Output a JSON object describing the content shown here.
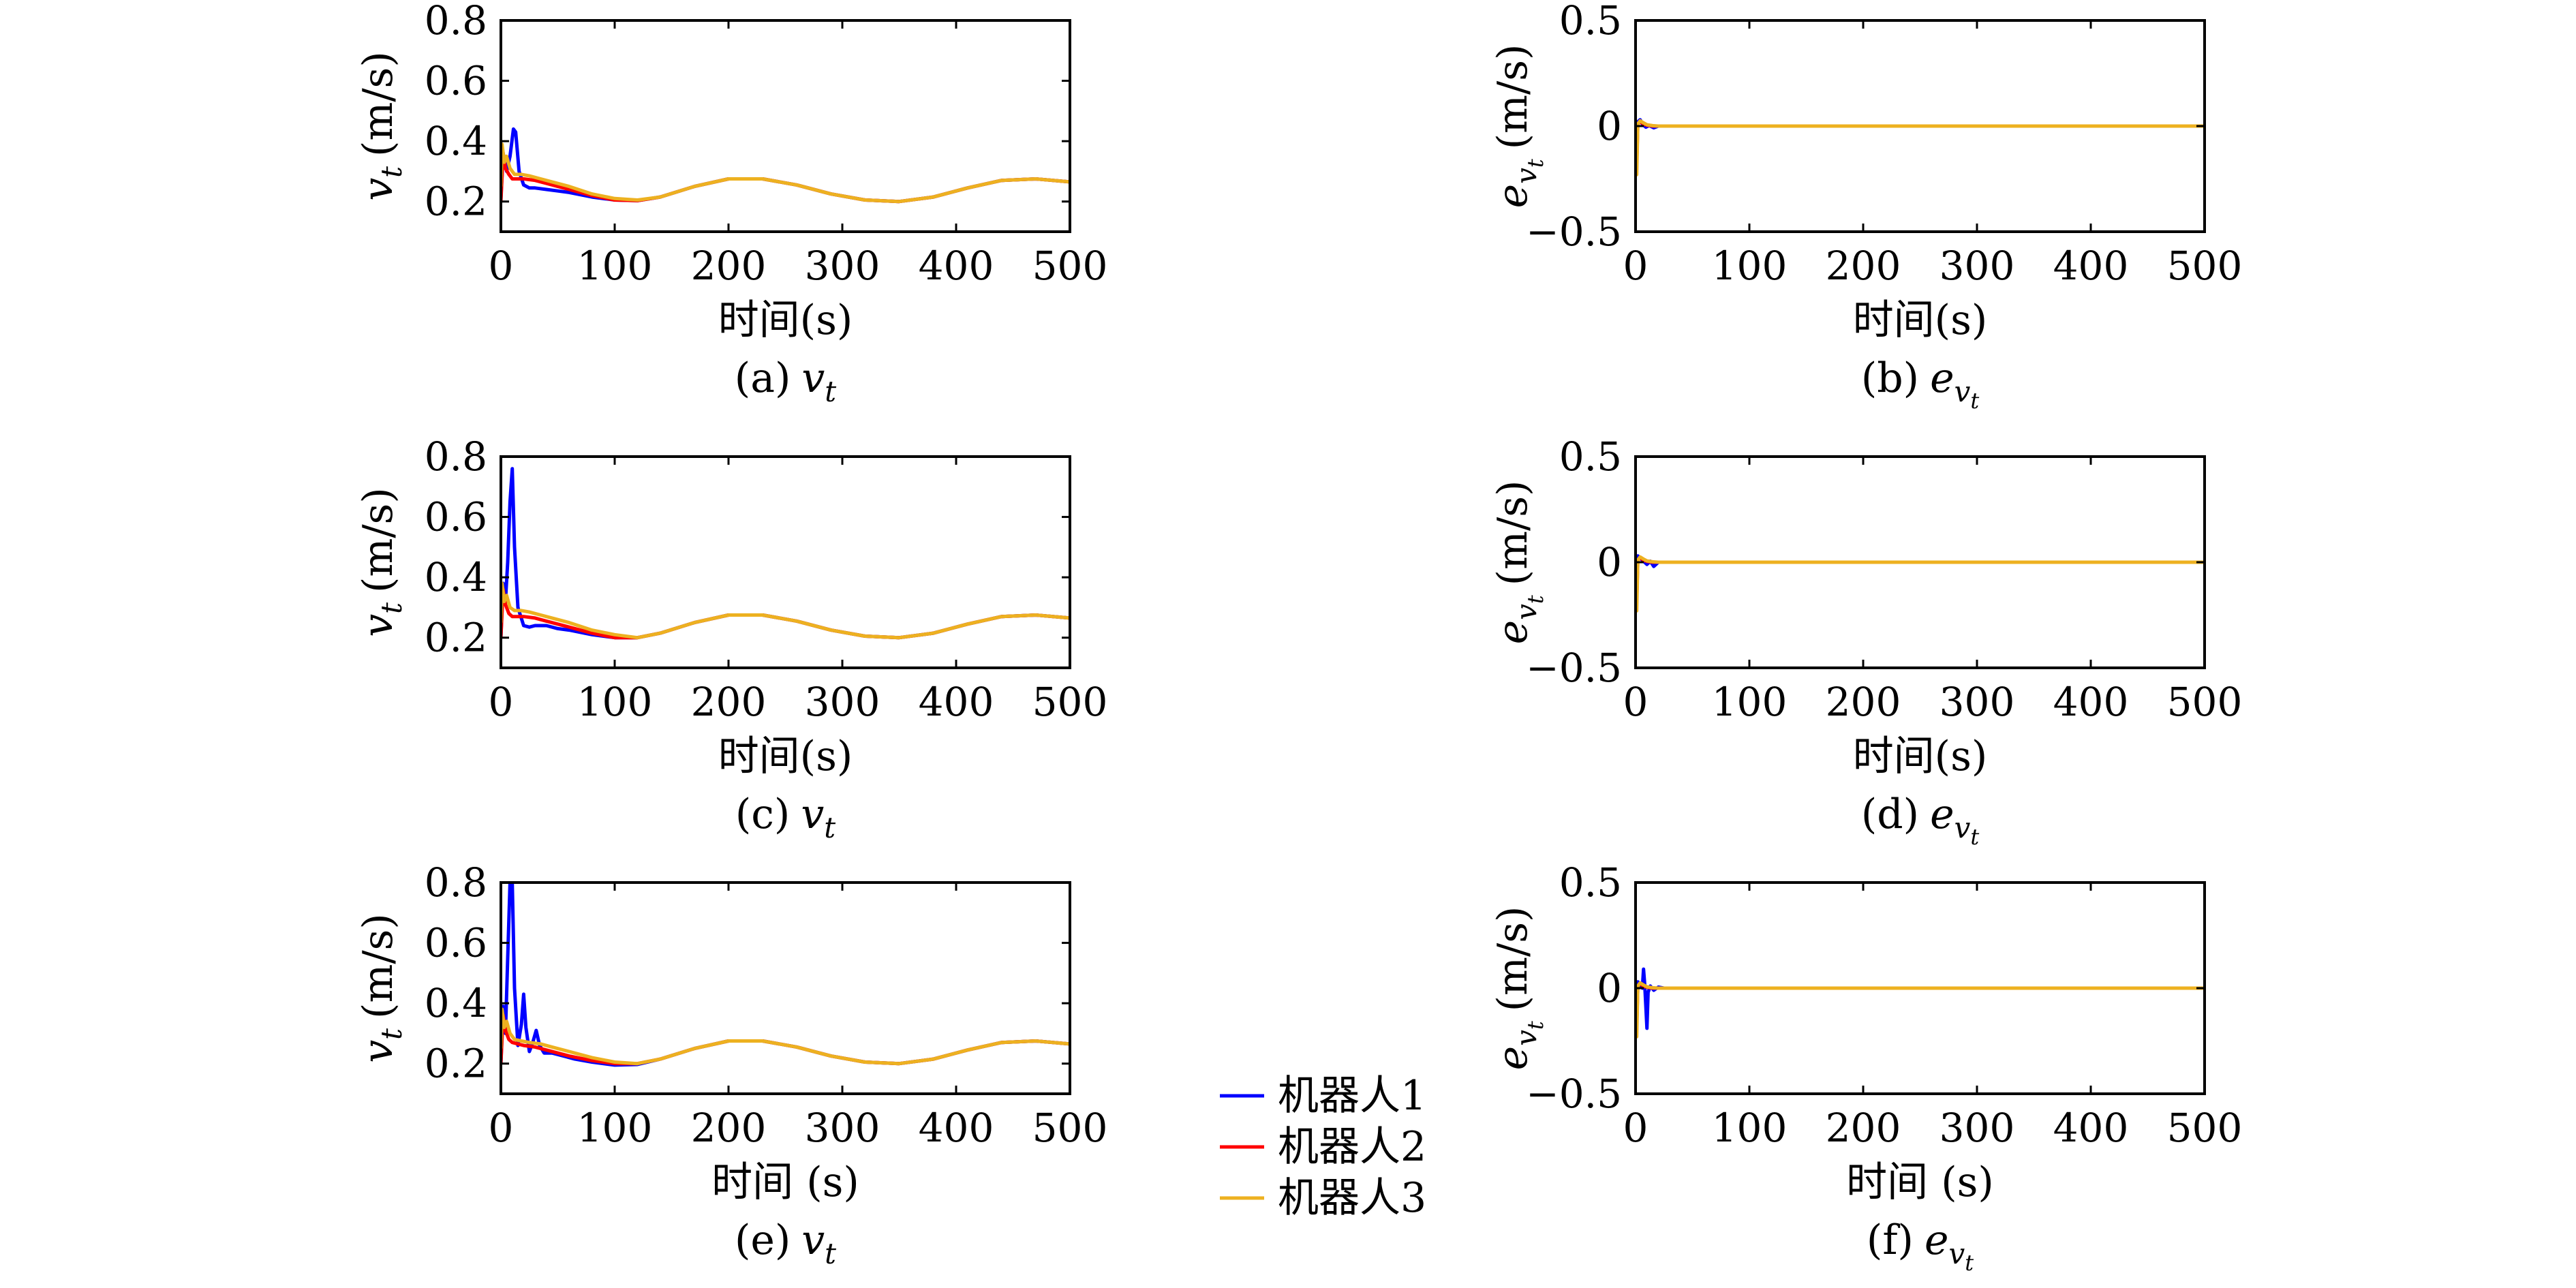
{
  "legend": [
    {
      "label": "机器人1",
      "color": "#0000ff"
    },
    {
      "label": "机器人2",
      "color": "#ff0000"
    },
    {
      "label": "机器人3",
      "color": "#edb120"
    }
  ],
  "chart_data": [
    {
      "panel": "a",
      "type": "line",
      "caption": {
        "prefix": "(a)",
        "symbol": "v",
        "sub": "t"
      },
      "ylabel": {
        "symbol": "v",
        "sub": "t",
        "unit": "(m/s)"
      },
      "xlabel": "时间(s)",
      "xlim": [
        0,
        500
      ],
      "ylim": [
        0.1,
        0.8
      ],
      "xticks": [
        "0",
        "100",
        "200",
        "300",
        "400",
        "500"
      ],
      "yticks": [
        "0.2",
        "0.4",
        "0.6",
        "0.8"
      ],
      "series": [
        {
          "name": "机器人1",
          "color": "#0000ff",
          "x": [
            0,
            2,
            5,
            8,
            11,
            13,
            16,
            20,
            25,
            30,
            40,
            50,
            60,
            80,
            100,
            120,
            140,
            170,
            200,
            230,
            260,
            290,
            320,
            350,
            380,
            410,
            440,
            470,
            500
          ],
          "y": [
            0.21,
            0.36,
            0.3,
            0.35,
            0.44,
            0.43,
            0.3,
            0.255,
            0.245,
            0.245,
            0.24,
            0.235,
            0.23,
            0.215,
            0.205,
            0.203,
            0.215,
            0.25,
            0.275,
            0.275,
            0.255,
            0.225,
            0.205,
            0.2,
            0.215,
            0.245,
            0.27,
            0.275,
            0.265
          ]
        },
        {
          "name": "机器人2",
          "color": "#ff0000",
          "x": [
            0,
            2,
            4,
            7,
            10,
            15,
            20,
            30,
            40,
            50,
            60,
            80,
            100,
            120,
            140,
            170,
            200,
            230,
            260,
            290,
            320,
            350,
            380,
            410,
            440,
            470,
            500
          ],
          "y": [
            0.2,
            0.36,
            0.31,
            0.29,
            0.275,
            0.275,
            0.275,
            0.27,
            0.26,
            0.25,
            0.24,
            0.22,
            0.205,
            0.203,
            0.215,
            0.25,
            0.275,
            0.275,
            0.255,
            0.225,
            0.205,
            0.2,
            0.215,
            0.245,
            0.27,
            0.275,
            0.265
          ]
        },
        {
          "name": "机器人3",
          "color": "#edb120",
          "x": [
            0,
            1,
            3,
            5,
            8,
            12,
            18,
            25,
            35,
            45,
            60,
            80,
            100,
            120,
            140,
            170,
            200,
            230,
            260,
            290,
            320,
            350,
            380,
            410,
            440,
            470,
            500
          ],
          "y": [
            0.25,
            0.39,
            0.33,
            0.35,
            0.31,
            0.29,
            0.29,
            0.285,
            0.275,
            0.265,
            0.25,
            0.225,
            0.21,
            0.205,
            0.215,
            0.25,
            0.275,
            0.275,
            0.255,
            0.225,
            0.205,
            0.2,
            0.215,
            0.245,
            0.27,
            0.275,
            0.265
          ]
        }
      ]
    },
    {
      "panel": "b",
      "type": "line",
      "caption": {
        "prefix": "(b)",
        "symbol": "e",
        "sub": "v",
        "subsub": "t"
      },
      "ylabel": {
        "symbol": "e",
        "sub": "v",
        "subsub": "t",
        "unit": "(m/s)"
      },
      "xlabel": "时间(s)",
      "xlim": [
        0,
        500
      ],
      "ylim": [
        -0.5,
        0.5
      ],
      "xticks": [
        "0",
        "100",
        "200",
        "300",
        "400",
        "500"
      ],
      "yticks": [
        "−0.5",
        "0",
        "0.5"
      ],
      "series": [
        {
          "name": "机器人1",
          "color": "#0000ff",
          "x": [
            0,
            1,
            2,
            4,
            6,
            9,
            12,
            16,
            20,
            30,
            500
          ],
          "y": [
            0,
            -0.15,
            0.02,
            0.03,
            0.01,
            -0.005,
            0.003,
            -0.008,
            0,
            0,
            0
          ]
        },
        {
          "name": "机器人2",
          "color": "#ff0000",
          "x": [
            0,
            1,
            2,
            4,
            7,
            10,
            15,
            30,
            500
          ],
          "y": [
            0,
            -0.18,
            0.01,
            0.02,
            0.01,
            0.004,
            0,
            0,
            0
          ]
        },
        {
          "name": "机器人3",
          "color": "#edb120",
          "x": [
            0,
            1,
            2,
            4,
            7,
            10,
            15,
            20,
            30,
            500
          ],
          "y": [
            0,
            -0.23,
            0.01,
            0.025,
            0.015,
            0.006,
            0.002,
            0,
            0,
            0
          ]
        }
      ]
    },
    {
      "panel": "c",
      "type": "line",
      "caption": {
        "prefix": "(c)",
        "symbol": "v",
        "sub": "t"
      },
      "ylabel": {
        "symbol": "v",
        "sub": "t",
        "unit": "(m/s)"
      },
      "xlabel": "时间(s)",
      "xlim": [
        0,
        500
      ],
      "ylim": [
        0.1,
        0.8
      ],
      "xticks": [
        "0",
        "100",
        "200",
        "300",
        "400",
        "500"
      ],
      "yticks": [
        "0.2",
        "0.4",
        "0.6",
        "0.8"
      ],
      "series": [
        {
          "name": "机器人1",
          "color": "#0000ff",
          "x": [
            0,
            2,
            4,
            6,
            8,
            10,
            12,
            15,
            20,
            25,
            30,
            40,
            50,
            60,
            80,
            100,
            120,
            140,
            170,
            200,
            230,
            260,
            290,
            320,
            350,
            380,
            410,
            440,
            470,
            500
          ],
          "y": [
            0.2,
            0.38,
            0.32,
            0.45,
            0.65,
            0.76,
            0.5,
            0.3,
            0.24,
            0.235,
            0.24,
            0.24,
            0.23,
            0.225,
            0.21,
            0.2,
            0.2,
            0.215,
            0.25,
            0.275,
            0.275,
            0.255,
            0.225,
            0.205,
            0.2,
            0.215,
            0.245,
            0.27,
            0.275,
            0.265
          ]
        },
        {
          "name": "机器人2",
          "color": "#ff0000",
          "x": [
            0,
            2,
            4,
            7,
            10,
            15,
            20,
            30,
            40,
            50,
            60,
            80,
            100,
            120,
            140,
            170,
            200,
            230,
            260,
            290,
            320,
            350,
            380,
            410,
            440,
            470,
            500
          ],
          "y": [
            0.2,
            0.36,
            0.31,
            0.28,
            0.27,
            0.27,
            0.27,
            0.265,
            0.255,
            0.245,
            0.235,
            0.215,
            0.2,
            0.2,
            0.215,
            0.25,
            0.275,
            0.275,
            0.255,
            0.225,
            0.205,
            0.2,
            0.215,
            0.245,
            0.27,
            0.275,
            0.265
          ]
        },
        {
          "name": "机器人3",
          "color": "#edb120",
          "x": [
            0,
            1,
            3,
            5,
            8,
            12,
            18,
            25,
            35,
            45,
            60,
            80,
            100,
            120,
            140,
            170,
            200,
            230,
            260,
            290,
            320,
            350,
            380,
            410,
            440,
            470,
            500
          ],
          "y": [
            0.25,
            0.38,
            0.32,
            0.34,
            0.3,
            0.29,
            0.29,
            0.285,
            0.275,
            0.265,
            0.25,
            0.225,
            0.21,
            0.2,
            0.215,
            0.25,
            0.275,
            0.275,
            0.255,
            0.225,
            0.205,
            0.2,
            0.215,
            0.245,
            0.27,
            0.275,
            0.265
          ]
        }
      ]
    },
    {
      "panel": "d",
      "type": "line",
      "caption": {
        "prefix": "(d)",
        "symbol": "e",
        "sub": "v",
        "subsub": "t"
      },
      "ylabel": {
        "symbol": "e",
        "sub": "v",
        "subsub": "t",
        "unit": "(m/s)"
      },
      "xlabel": "时间(s)",
      "xlim": [
        0,
        500
      ],
      "ylim": [
        -0.5,
        0.5
      ],
      "xticks": [
        "0",
        "100",
        "200",
        "300",
        "400",
        "500"
      ],
      "yticks": [
        "−0.5",
        "0",
        "0.5"
      ],
      "series": [
        {
          "name": "机器人1",
          "color": "#0000ff",
          "x": [
            0,
            1,
            2,
            4,
            7,
            10,
            13,
            16,
            20,
            30,
            500
          ],
          "y": [
            0,
            -0.15,
            0.03,
            0.02,
            0.005,
            -0.01,
            0.005,
            -0.02,
            0,
            0,
            0
          ]
        },
        {
          "name": "机器人2",
          "color": "#ff0000",
          "x": [
            0,
            1,
            2,
            4,
            7,
            10,
            15,
            30,
            500
          ],
          "y": [
            0,
            -0.18,
            0.01,
            0.02,
            0.01,
            0.004,
            0,
            0,
            0
          ]
        },
        {
          "name": "机器人3",
          "color": "#edb120",
          "x": [
            0,
            1,
            2,
            4,
            7,
            10,
            15,
            20,
            30,
            500
          ],
          "y": [
            0,
            -0.23,
            0.01,
            0.025,
            0.015,
            0.006,
            0.002,
            0,
            0,
            0
          ]
        }
      ]
    },
    {
      "panel": "e",
      "type": "line",
      "caption": {
        "prefix": "(e)",
        "symbol": "v",
        "sub": "t"
      },
      "ylabel": {
        "symbol": "v",
        "sub": "t",
        "unit": "(m/s)"
      },
      "xlabel": "时间 (s)",
      "xlim": [
        0,
        500
      ],
      "ylim": [
        0.1,
        0.8
      ],
      "xticks": [
        "0",
        "100",
        "200",
        "300",
        "400",
        "500"
      ],
      "yticks": [
        "0.2",
        "0.4",
        "0.6",
        "0.8"
      ],
      "series": [
        {
          "name": "机器人1",
          "color": "#0000ff",
          "x": [
            0,
            2,
            4,
            6,
            8,
            10,
            12,
            15,
            18,
            20,
            22,
            25,
            28,
            31,
            34,
            38,
            45,
            55,
            65,
            80,
            100,
            120,
            140,
            170,
            200,
            230,
            260,
            290,
            320,
            350,
            380,
            410,
            440,
            470,
            500
          ],
          "y": [
            0.2,
            0.39,
            0.3,
            0.55,
            0.8,
            0.8,
            0.45,
            0.26,
            0.33,
            0.43,
            0.32,
            0.24,
            0.27,
            0.31,
            0.26,
            0.235,
            0.235,
            0.225,
            0.215,
            0.205,
            0.195,
            0.197,
            0.215,
            0.25,
            0.275,
            0.275,
            0.255,
            0.225,
            0.205,
            0.2,
            0.215,
            0.245,
            0.27,
            0.275,
            0.265
          ]
        },
        {
          "name": "机器人2",
          "color": "#ff0000",
          "x": [
            0,
            2,
            4,
            7,
            10,
            15,
            20,
            30,
            40,
            50,
            60,
            80,
            100,
            120,
            140,
            170,
            200,
            230,
            260,
            290,
            320,
            350,
            380,
            410,
            440,
            470,
            500
          ],
          "y": [
            0.2,
            0.36,
            0.31,
            0.28,
            0.27,
            0.265,
            0.26,
            0.255,
            0.245,
            0.235,
            0.225,
            0.21,
            0.2,
            0.2,
            0.215,
            0.25,
            0.275,
            0.275,
            0.255,
            0.225,
            0.205,
            0.2,
            0.215,
            0.245,
            0.27,
            0.275,
            0.265
          ]
        },
        {
          "name": "机器人3",
          "color": "#edb120",
          "x": [
            0,
            1,
            3,
            5,
            8,
            12,
            18,
            25,
            35,
            45,
            60,
            80,
            100,
            120,
            140,
            170,
            200,
            230,
            260,
            290,
            320,
            350,
            380,
            410,
            440,
            470,
            500
          ],
          "y": [
            0.25,
            0.38,
            0.32,
            0.34,
            0.3,
            0.28,
            0.275,
            0.27,
            0.265,
            0.255,
            0.24,
            0.22,
            0.205,
            0.2,
            0.215,
            0.25,
            0.275,
            0.275,
            0.255,
            0.225,
            0.205,
            0.2,
            0.215,
            0.245,
            0.27,
            0.275,
            0.265
          ]
        }
      ]
    },
    {
      "panel": "f",
      "type": "line",
      "caption": {
        "prefix": "(f)",
        "symbol": "e",
        "sub": "v",
        "subsub": "t"
      },
      "ylabel": {
        "symbol": "e",
        "sub": "v",
        "subsub": "t",
        "unit": "(m/s)"
      },
      "xlabel": "时间 (s)",
      "xlim": [
        0,
        500
      ],
      "ylim": [
        -0.5,
        0.5
      ],
      "xticks": [
        "0",
        "100",
        "200",
        "300",
        "400",
        "500"
      ],
      "yticks": [
        "−0.5",
        "0",
        "0.5"
      ],
      "series": [
        {
          "name": "机器人1",
          "color": "#0000ff",
          "x": [
            0,
            1,
            2,
            4,
            6,
            7,
            8,
            9,
            10,
            11,
            13,
            16,
            20,
            25,
            30,
            500
          ],
          "y": [
            0,
            -0.15,
            0.03,
            0.02,
            0.0,
            0.09,
            0.02,
            -0.08,
            -0.19,
            -0.02,
            0.01,
            -0.01,
            0.005,
            0,
            0,
            0
          ]
        },
        {
          "name": "机器人2",
          "color": "#ff0000",
          "x": [
            0,
            1,
            2,
            4,
            7,
            10,
            15,
            30,
            500
          ],
          "y": [
            0,
            -0.18,
            0.01,
            0.02,
            0.01,
            0.004,
            0,
            0,
            0
          ]
        },
        {
          "name": "机器人3",
          "color": "#edb120",
          "x": [
            0,
            1,
            2,
            4,
            7,
            10,
            15,
            20,
            30,
            500
          ],
          "y": [
            0,
            -0.23,
            0.01,
            0.025,
            0.015,
            0.006,
            0.002,
            0,
            0,
            0
          ]
        }
      ]
    }
  ]
}
